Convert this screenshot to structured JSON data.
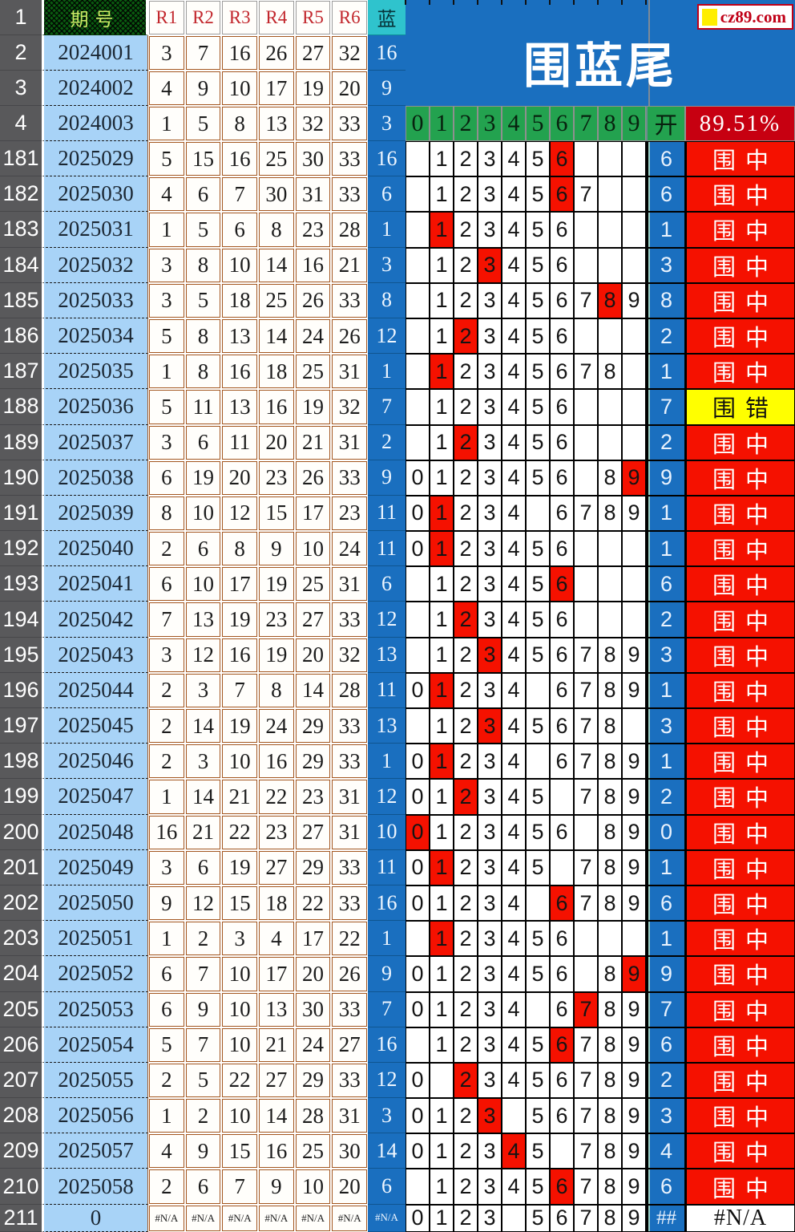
{
  "title": "围蓝尾",
  "badge": {
    "text": "cz89.com"
  },
  "header": {
    "row1_num": "1",
    "period_label": "期号",
    "r_labels": [
      "R1",
      "R2",
      "R3",
      "R4",
      "R5",
      "R6"
    ],
    "blue_label": "蓝",
    "digit_labels": [
      "0",
      "1",
      "2",
      "3",
      "4",
      "5",
      "6",
      "7",
      "8",
      "9"
    ],
    "kai_label": "开",
    "accuracy": "89.51%"
  },
  "colors": {
    "blue": "#1a6fbf",
    "light_blue": "#a8d3f7",
    "green": "#23a24f",
    "teal": "#2fc3cd",
    "red": "#f51100",
    "dark_red": "#c70011",
    "yellow": "#ffff00",
    "gray": "#59595b",
    "brown_border": "#a3561f"
  },
  "result_labels": {
    "hit": "围中",
    "miss": "围错"
  },
  "top_rows": [
    {
      "num": "2",
      "period": "2024001",
      "r": [
        "3",
        "7",
        "16",
        "26",
        "27",
        "32"
      ],
      "blue": "16",
      "digit_header": false
    },
    {
      "num": "3",
      "period": "2024002",
      "r": [
        "4",
        "9",
        "10",
        "17",
        "19",
        "20"
      ],
      "blue": "9",
      "digit_header": false
    },
    {
      "num": "4",
      "period": "2024003",
      "r": [
        "1",
        "5",
        "8",
        "13",
        "32",
        "33"
      ],
      "blue": "3",
      "digit_header": true
    }
  ],
  "rows": [
    {
      "num": "181",
      "period": "2025029",
      "r": [
        "5",
        "15",
        "16",
        "25",
        "30",
        "33"
      ],
      "blue": "16",
      "show": [
        1,
        2,
        3,
        4,
        5,
        6
      ],
      "hl": 6,
      "kai": "6",
      "result": "围中",
      "type": "hit"
    },
    {
      "num": "182",
      "period": "2025030",
      "r": [
        "4",
        "6",
        "7",
        "30",
        "31",
        "33"
      ],
      "blue": "6",
      "show": [
        1,
        2,
        3,
        4,
        5,
        6,
        7
      ],
      "hl": 6,
      "kai": "6",
      "result": "围中",
      "type": "hit"
    },
    {
      "num": "183",
      "period": "2025031",
      "r": [
        "1",
        "5",
        "6",
        "8",
        "23",
        "28"
      ],
      "blue": "1",
      "show": [
        1,
        2,
        3,
        4,
        5,
        6
      ],
      "hl": 1,
      "kai": "1",
      "result": "围中",
      "type": "hit"
    },
    {
      "num": "184",
      "period": "2025032",
      "r": [
        "3",
        "8",
        "10",
        "14",
        "16",
        "21"
      ],
      "blue": "3",
      "show": [
        1,
        2,
        3,
        4,
        5,
        6
      ],
      "hl": 3,
      "kai": "3",
      "result": "围中",
      "type": "hit"
    },
    {
      "num": "185",
      "period": "2025033",
      "r": [
        "3",
        "5",
        "18",
        "25",
        "26",
        "33"
      ],
      "blue": "8",
      "show": [
        1,
        2,
        3,
        4,
        5,
        6,
        7,
        8,
        9
      ],
      "hl": 8,
      "kai": "8",
      "result": "围中",
      "type": "hit"
    },
    {
      "num": "186",
      "period": "2025034",
      "r": [
        "5",
        "8",
        "13",
        "14",
        "24",
        "26"
      ],
      "blue": "12",
      "show": [
        1,
        2,
        3,
        4,
        5,
        6
      ],
      "hl": 2,
      "kai": "2",
      "result": "围中",
      "type": "hit"
    },
    {
      "num": "187",
      "period": "2025035",
      "r": [
        "1",
        "8",
        "16",
        "18",
        "25",
        "31"
      ],
      "blue": "1",
      "show": [
        1,
        2,
        3,
        4,
        5,
        6,
        7,
        8
      ],
      "hl": 1,
      "kai": "1",
      "result": "围中",
      "type": "hit"
    },
    {
      "num": "188",
      "period": "2025036",
      "r": [
        "5",
        "11",
        "13",
        "16",
        "19",
        "32"
      ],
      "blue": "7",
      "show": [
        1,
        2,
        3,
        4,
        5,
        6
      ],
      "hl": -1,
      "kai": "7",
      "result": "围错",
      "type": "miss"
    },
    {
      "num": "189",
      "period": "2025037",
      "r": [
        "3",
        "6",
        "11",
        "20",
        "21",
        "31"
      ],
      "blue": "2",
      "show": [
        1,
        2,
        3,
        4,
        5,
        6
      ],
      "hl": 2,
      "kai": "2",
      "result": "围中",
      "type": "hit"
    },
    {
      "num": "190",
      "period": "2025038",
      "r": [
        "6",
        "19",
        "20",
        "23",
        "26",
        "33"
      ],
      "blue": "9",
      "show": [
        0,
        1,
        2,
        3,
        4,
        5,
        6,
        8,
        9
      ],
      "hl": 9,
      "kai": "9",
      "result": "围中",
      "type": "hit"
    },
    {
      "num": "191",
      "period": "2025039",
      "r": [
        "8",
        "10",
        "12",
        "15",
        "17",
        "23"
      ],
      "blue": "11",
      "show": [
        0,
        1,
        2,
        3,
        4,
        6,
        7,
        8,
        9
      ],
      "hl": 1,
      "kai": "1",
      "result": "围中",
      "type": "hit"
    },
    {
      "num": "192",
      "period": "2025040",
      "r": [
        "2",
        "6",
        "8",
        "9",
        "10",
        "24"
      ],
      "blue": "11",
      "show": [
        0,
        1,
        2,
        3,
        4,
        5,
        6
      ],
      "hl": 1,
      "kai": "1",
      "result": "围中",
      "type": "hit"
    },
    {
      "num": "193",
      "period": "2025041",
      "r": [
        "6",
        "10",
        "17",
        "19",
        "25",
        "31"
      ],
      "blue": "6",
      "show": [
        1,
        2,
        3,
        4,
        5,
        6
      ],
      "hl": 6,
      "kai": "6",
      "result": "围中",
      "type": "hit"
    },
    {
      "num": "194",
      "period": "2025042",
      "r": [
        "7",
        "13",
        "19",
        "23",
        "27",
        "33"
      ],
      "blue": "12",
      "show": [
        1,
        2,
        3,
        4,
        5,
        6
      ],
      "hl": 2,
      "kai": "2",
      "result": "围中",
      "type": "hit"
    },
    {
      "num": "195",
      "period": "2025043",
      "r": [
        "3",
        "12",
        "16",
        "19",
        "20",
        "32"
      ],
      "blue": "13",
      "show": [
        1,
        2,
        3,
        4,
        5,
        6,
        7,
        8,
        9
      ],
      "hl": 3,
      "kai": "3",
      "result": "围中",
      "type": "hit"
    },
    {
      "num": "196",
      "period": "2025044",
      "r": [
        "2",
        "3",
        "7",
        "8",
        "14",
        "28"
      ],
      "blue": "11",
      "show": [
        0,
        1,
        2,
        3,
        4,
        6,
        7,
        8,
        9
      ],
      "hl": 1,
      "kai": "1",
      "result": "围中",
      "type": "hit"
    },
    {
      "num": "197",
      "period": "2025045",
      "r": [
        "2",
        "14",
        "19",
        "24",
        "29",
        "33"
      ],
      "blue": "13",
      "show": [
        1,
        2,
        3,
        4,
        5,
        6,
        7,
        8
      ],
      "hl": 3,
      "kai": "3",
      "result": "围中",
      "type": "hit"
    },
    {
      "num": "198",
      "period": "2025046",
      "r": [
        "2",
        "3",
        "10",
        "16",
        "29",
        "33"
      ],
      "blue": "1",
      "show": [
        0,
        1,
        2,
        3,
        4,
        6,
        7,
        8,
        9
      ],
      "hl": 1,
      "kai": "1",
      "result": "围中",
      "type": "hit"
    },
    {
      "num": "199",
      "period": "2025047",
      "r": [
        "1",
        "14",
        "21",
        "22",
        "23",
        "31"
      ],
      "blue": "12",
      "show": [
        0,
        1,
        2,
        3,
        4,
        5,
        7,
        8,
        9
      ],
      "hl": 2,
      "kai": "2",
      "result": "围中",
      "type": "hit"
    },
    {
      "num": "200",
      "period": "2025048",
      "r": [
        "16",
        "21",
        "22",
        "23",
        "27",
        "31"
      ],
      "blue": "10",
      "show": [
        0,
        1,
        2,
        3,
        4,
        5,
        6,
        8,
        9
      ],
      "hl": 0,
      "kai": "0",
      "result": "围中",
      "type": "hit"
    },
    {
      "num": "201",
      "period": "2025049",
      "r": [
        "3",
        "6",
        "19",
        "27",
        "29",
        "33"
      ],
      "blue": "11",
      "show": [
        0,
        1,
        2,
        3,
        4,
        5,
        7,
        8,
        9
      ],
      "hl": 1,
      "kai": "1",
      "result": "围中",
      "type": "hit"
    },
    {
      "num": "202",
      "period": "2025050",
      "r": [
        "9",
        "12",
        "15",
        "18",
        "22",
        "33"
      ],
      "blue": "16",
      "show": [
        0,
        1,
        2,
        3,
        4,
        6,
        7,
        8,
        9
      ],
      "hl": 6,
      "kai": "6",
      "result": "围中",
      "type": "hit"
    },
    {
      "num": "203",
      "period": "2025051",
      "r": [
        "1",
        "2",
        "3",
        "4",
        "17",
        "22"
      ],
      "blue": "1",
      "show": [
        1,
        2,
        3,
        4,
        5,
        6
      ],
      "hl": 1,
      "kai": "1",
      "result": "围中",
      "type": "hit"
    },
    {
      "num": "204",
      "period": "2025052",
      "r": [
        "6",
        "7",
        "10",
        "17",
        "20",
        "26"
      ],
      "blue": "9",
      "show": [
        0,
        1,
        2,
        3,
        4,
        5,
        6,
        8,
        9
      ],
      "hl": 9,
      "kai": "9",
      "result": "围中",
      "type": "hit"
    },
    {
      "num": "205",
      "period": "2025053",
      "r": [
        "6",
        "9",
        "10",
        "13",
        "30",
        "33"
      ],
      "blue": "7",
      "show": [
        0,
        1,
        2,
        3,
        4,
        6,
        7,
        8,
        9
      ],
      "hl": 7,
      "kai": "7",
      "result": "围中",
      "type": "hit"
    },
    {
      "num": "206",
      "period": "2025054",
      "r": [
        "5",
        "7",
        "10",
        "21",
        "24",
        "27"
      ],
      "blue": "16",
      "show": [
        1,
        2,
        3,
        4,
        5,
        6,
        7,
        8,
        9
      ],
      "hl": 6,
      "kai": "6",
      "result": "围中",
      "type": "hit"
    },
    {
      "num": "207",
      "period": "2025055",
      "r": [
        "2",
        "5",
        "22",
        "27",
        "29",
        "33"
      ],
      "blue": "12",
      "show": [
        0,
        2,
        3,
        4,
        5,
        6,
        7,
        8,
        9
      ],
      "hl": 2,
      "kai": "2",
      "result": "围中",
      "type": "hit"
    },
    {
      "num": "208",
      "period": "2025056",
      "r": [
        "1",
        "2",
        "10",
        "14",
        "28",
        "31"
      ],
      "blue": "3",
      "show": [
        0,
        1,
        2,
        3,
        5,
        6,
        7,
        8,
        9
      ],
      "hl": 3,
      "kai": "3",
      "result": "围中",
      "type": "hit"
    },
    {
      "num": "209",
      "period": "2025057",
      "r": [
        "4",
        "9",
        "15",
        "16",
        "25",
        "30"
      ],
      "blue": "14",
      "show": [
        0,
        1,
        2,
        3,
        4,
        5,
        7,
        8,
        9
      ],
      "hl": 4,
      "kai": "4",
      "result": "围中",
      "type": "hit"
    },
    {
      "num": "210",
      "period": "2025058",
      "r": [
        "2",
        "6",
        "7",
        "9",
        "10",
        "20"
      ],
      "blue": "6",
      "show": [
        1,
        2,
        3,
        4,
        5,
        6,
        7,
        8,
        9
      ],
      "hl": 6,
      "kai": "6",
      "result": "围中",
      "type": "hit"
    },
    {
      "num": "211",
      "period": "0",
      "r": [
        "#N/A",
        "#N/A",
        "#N/A",
        "#N/A",
        "#N/A",
        "#N/A"
      ],
      "blue": "#N/A",
      "show": [
        0,
        1,
        2,
        3,
        5,
        6,
        7,
        8,
        9
      ],
      "hl": -1,
      "kai": "##",
      "result": "#N/A",
      "type": "na"
    }
  ]
}
